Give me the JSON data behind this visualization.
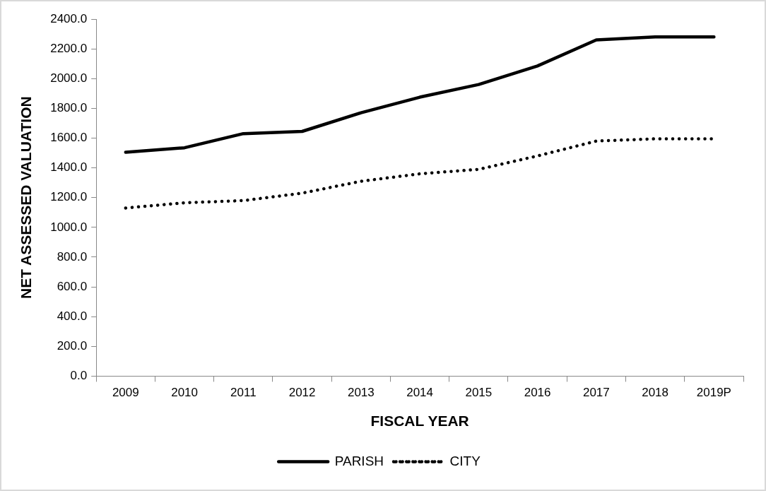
{
  "chart_data": {
    "type": "line",
    "xlabel": "FISCAL YEAR",
    "ylabel": "NET ASSESSED VALUATION",
    "categories": [
      "2009",
      "2010",
      "2011",
      "2012",
      "2013",
      "2014",
      "2015",
      "2016",
      "2017",
      "2018",
      "2019P"
    ],
    "series": [
      {
        "name": "PARISH",
        "color": "#000000",
        "line_style": "solid",
        "values": [
          1505,
          1535,
          1630,
          1645,
          1770,
          1875,
          1960,
          2085,
          2260,
          2280,
          2280
        ]
      },
      {
        "name": "CITY",
        "color": "#000000",
        "line_style": "dotted",
        "values": [
          1130,
          1165,
          1180,
          1230,
          1310,
          1360,
          1390,
          1480,
          1580,
          1595,
          1595
        ]
      }
    ],
    "ylim": [
      0,
      2400
    ],
    "yticks": [
      {
        "value": 0,
        "label": "0.0"
      },
      {
        "value": 200,
        "label": "200.0"
      },
      {
        "value": 400,
        "label": "400.0"
      },
      {
        "value": 600,
        "label": "600.0"
      },
      {
        "value": 800,
        "label": "800.0"
      },
      {
        "value": 1000,
        "label": "1000.0"
      },
      {
        "value": 1200,
        "label": "1200.0"
      },
      {
        "value": 1400,
        "label": "1400.0"
      },
      {
        "value": 1600,
        "label": "1600.0"
      },
      {
        "value": 1800,
        "label": "1800.0"
      },
      {
        "value": 2000,
        "label": "2000.0"
      },
      {
        "value": 2200,
        "label": "2200.0"
      },
      {
        "value": 2400,
        "label": "2400.0"
      }
    ],
    "grid": false,
    "legend": "bottom",
    "marker": "none"
  }
}
